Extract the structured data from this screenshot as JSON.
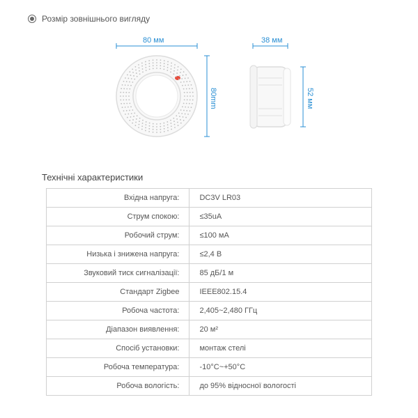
{
  "header": {
    "title": "Розмір зовнішнього вигляду"
  },
  "dimensions": {
    "width_label": "80 мм",
    "depth_label": "38 мм",
    "height_label": "80mm",
    "side_height_label": "52 мм"
  },
  "specs": {
    "title": "Технічні характеристики",
    "rows": [
      {
        "label": "Вхідна напруга:",
        "value": "DC3V LR03"
      },
      {
        "label": "Струм спокою:",
        "value": "≤35uA"
      },
      {
        "label": "Робочий струм:",
        "value": "≤100 мА"
      },
      {
        "label": "Низька і знижена напруга:",
        "value": "≤2,4 В"
      },
      {
        "label": "Звуковий тиск сигналізації:",
        "value": "85 дБ/1 м"
      },
      {
        "label": "Стандарт Zigbee",
        "value": "IEEE802.15.4"
      },
      {
        "label": "Робоча частота:",
        "value": "2,405~2,480 ГГц"
      },
      {
        "label": "Діапазон виявлення:",
        "value": "20 м²"
      },
      {
        "label": "Спосіб установки:",
        "value": "монтаж стелі"
      },
      {
        "label": "Робоча температура:",
        "value": "-10°C~+50°C"
      },
      {
        "label": "Робоча вологість:",
        "value": "до 95% відносної вологості"
      }
    ]
  },
  "colors": {
    "dim": "#2a8fd4",
    "led": "#e74c3c",
    "device_fill": "#f8f8f8",
    "device_stroke": "#dcdcdc",
    "dot": "#bfbfbf"
  }
}
